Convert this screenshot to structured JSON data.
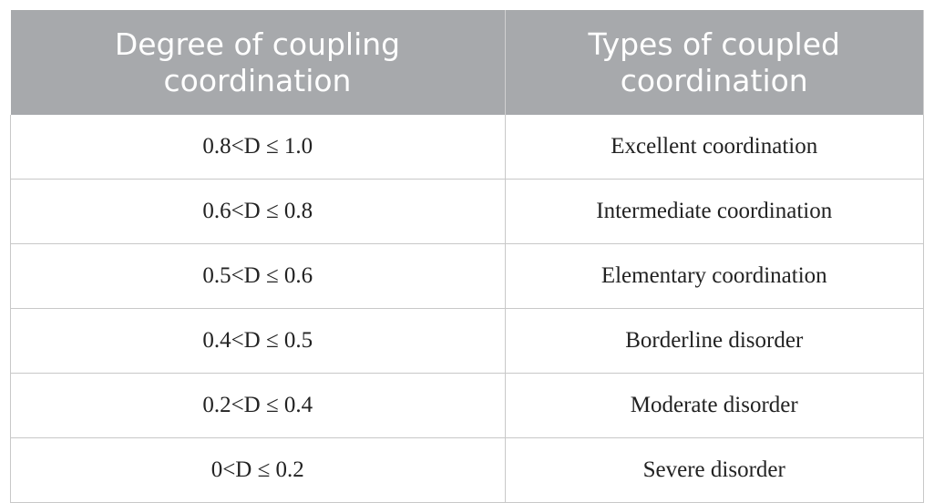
{
  "table": {
    "header": [
      "Degree of coupling coordination",
      "Types of coupled coordination"
    ],
    "rows": [
      [
        "0.8<D ≤ 1.0",
        "Excellent coordination"
      ],
      [
        "0.6<D ≤ 0.8",
        "Intermediate coordination"
      ],
      [
        "0.5<D ≤ 0.6",
        "Elementary coordination"
      ],
      [
        "0.4<D ≤ 0.5",
        "Borderline disorder"
      ],
      [
        "0.2<D ≤ 0.4",
        "Moderate disorder"
      ],
      [
        "0<D ≤ 0.2",
        "Severe disorder"
      ]
    ]
  }
}
